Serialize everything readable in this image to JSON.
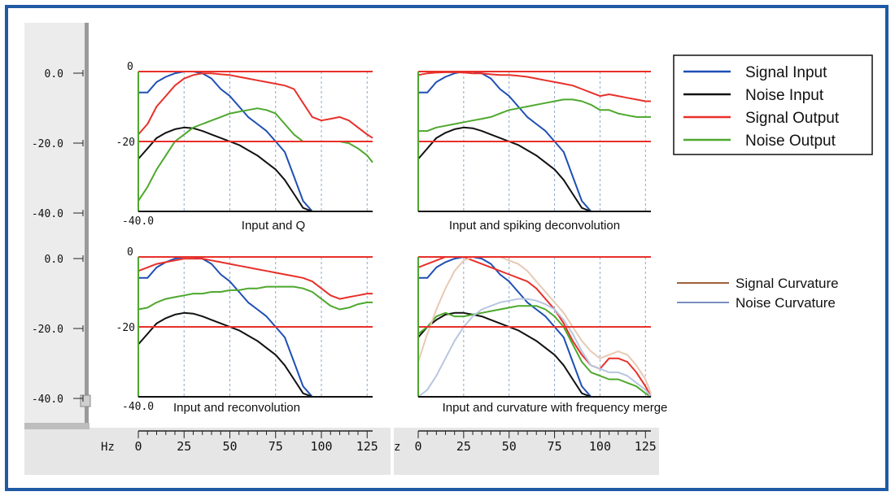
{
  "axis": {
    "y_labels": [
      "0.0",
      "-20.0",
      "-40.0",
      "0.0",
      "-20.0",
      "-40.0"
    ],
    "x_unit": "Hz",
    "x_unit_right": "z",
    "x_ticks": [
      "0",
      "25",
      "50",
      "75",
      "100",
      "125"
    ]
  },
  "legend": {
    "main": [
      {
        "label": "Signal Input",
        "color": "#1f4fb4"
      },
      {
        "label": "Noise Input",
        "color": "#111111"
      },
      {
        "label": "Signal Output",
        "color": "#e8302a"
      },
      {
        "label": "Noise Output",
        "color": "#4ea82e"
      }
    ],
    "curvature": [
      {
        "label": "Signal Curvature",
        "color": "#a0603a"
      },
      {
        "label": "Noise Curvature",
        "color": "#7a8fc0"
      }
    ]
  },
  "chart_data": [
    {
      "type": "line",
      "title": "Input and Q",
      "xlabel": "Hz",
      "ylabel": "",
      "xlim": [
        0,
        128
      ],
      "ylim": [
        -40,
        0
      ],
      "ytick_labels": [
        "0",
        "-20",
        "-40.0"
      ],
      "reference_lines": [
        0,
        -20
      ],
      "series": [
        {
          "name": "Signal Input",
          "color": "#1f4fb4",
          "x": [
            0,
            5,
            10,
            15,
            20,
            25,
            30,
            35,
            40,
            45,
            50,
            55,
            60,
            65,
            70,
            75,
            80,
            85,
            90,
            95,
            100
          ],
          "y": [
            -6,
            -6,
            -3,
            -1.5,
            -0.5,
            0,
            0,
            -0.5,
            -2,
            -5,
            -7,
            -10,
            -13,
            -15,
            -17,
            -20,
            -23,
            -30,
            -37,
            -40,
            -40
          ]
        },
        {
          "name": "Noise Input",
          "color": "#111111",
          "x": [
            0,
            5,
            10,
            15,
            20,
            25,
            30,
            35,
            40,
            45,
            50,
            55,
            60,
            65,
            70,
            75,
            80,
            85,
            90,
            95,
            100,
            128
          ],
          "y": [
            -25,
            -22,
            -19,
            -17.5,
            -16.5,
            -16,
            -16.2,
            -17,
            -18,
            -19,
            -20,
            -21,
            -22.5,
            -24,
            -26,
            -28,
            -31,
            -35,
            -39,
            -40,
            -40,
            -40
          ]
        },
        {
          "name": "Signal Output",
          "color": "#e8302a",
          "x": [
            0,
            5,
            10,
            15,
            20,
            25,
            30,
            35,
            40,
            45,
            50,
            55,
            60,
            65,
            70,
            75,
            80,
            85,
            90,
            95,
            100,
            105,
            110,
            115,
            120,
            125,
            128
          ],
          "y": [
            -18,
            -15,
            -10,
            -7,
            -4,
            -2,
            -1,
            -0.5,
            -0.5,
            -0.8,
            -1,
            -1.5,
            -2,
            -2.5,
            -3,
            -3.5,
            -4,
            -5,
            -9,
            -13,
            -14,
            -13.5,
            -13,
            -14,
            -16,
            -18,
            -19
          ]
        },
        {
          "name": "Noise Output",
          "color": "#4ea82e",
          "x": [
            0,
            5,
            10,
            15,
            20,
            25,
            30,
            35,
            40,
            45,
            50,
            55,
            60,
            65,
            70,
            75,
            80,
            85,
            90,
            95,
            100,
            105,
            110,
            115,
            120,
            125,
            128
          ],
          "y": [
            -37,
            -33,
            -28,
            -24,
            -20,
            -18,
            -16,
            -15,
            -14,
            -13,
            -12,
            -11.5,
            -11,
            -10.5,
            -11,
            -12,
            -15,
            -18,
            -20,
            -20,
            -20,
            -20,
            -20,
            -20.5,
            -22,
            -24,
            -26
          ]
        }
      ]
    },
    {
      "type": "line",
      "title": "Input and spiking deconvolution",
      "xlabel": "Hz",
      "ylabel": "",
      "xlim": [
        0,
        128
      ],
      "ylim": [
        -40,
        0
      ],
      "reference_lines": [
        0,
        -20
      ],
      "series": [
        {
          "name": "Signal Input",
          "color": "#1f4fb4",
          "x": [
            0,
            5,
            10,
            15,
            20,
            25,
            30,
            35,
            40,
            45,
            50,
            55,
            60,
            65,
            70,
            75,
            80,
            85,
            90,
            95,
            100
          ],
          "y": [
            -6,
            -6,
            -3,
            -1.5,
            -0.5,
            0,
            0,
            -0.5,
            -2,
            -5,
            -7,
            -10,
            -13,
            -15,
            -17,
            -20,
            -23,
            -30,
            -37,
            -40,
            -40
          ]
        },
        {
          "name": "Noise Input",
          "color": "#111111",
          "x": [
            0,
            5,
            10,
            15,
            20,
            25,
            30,
            35,
            40,
            45,
            50,
            55,
            60,
            65,
            70,
            75,
            80,
            85,
            90,
            95,
            100,
            128
          ],
          "y": [
            -25,
            -22,
            -19,
            -17.5,
            -16.5,
            -16,
            -16.2,
            -17,
            -18,
            -19,
            -20,
            -21,
            -22.5,
            -24,
            -26,
            -28,
            -31,
            -35,
            -39,
            -40,
            -40,
            -40
          ]
        },
        {
          "name": "Signal Output",
          "color": "#e8302a",
          "x": [
            0,
            5,
            10,
            15,
            20,
            25,
            30,
            35,
            40,
            45,
            50,
            55,
            60,
            65,
            70,
            75,
            80,
            85,
            90,
            95,
            100,
            105,
            110,
            115,
            120,
            125,
            128
          ],
          "y": [
            -1,
            -0.5,
            -0.3,
            -0.2,
            -0.2,
            -0.3,
            -0.5,
            -0.5,
            -0.8,
            -1,
            -1,
            -1.2,
            -1.5,
            -2,
            -2.5,
            -3,
            -3.5,
            -4,
            -5,
            -6,
            -7,
            -6.5,
            -7,
            -7.5,
            -8,
            -8.5,
            -8.5
          ]
        },
        {
          "name": "Noise Output",
          "color": "#4ea82e",
          "x": [
            0,
            5,
            10,
            15,
            20,
            25,
            30,
            35,
            40,
            45,
            50,
            55,
            60,
            65,
            70,
            75,
            80,
            85,
            90,
            95,
            100,
            105,
            110,
            115,
            120,
            125,
            128
          ],
          "y": [
            -17,
            -17,
            -16,
            -15.5,
            -15,
            -14.5,
            -14,
            -13.5,
            -13,
            -12,
            -11,
            -10.5,
            -10,
            -9.5,
            -9,
            -8.5,
            -8,
            -8,
            -8.5,
            -9.5,
            -11,
            -11,
            -12,
            -12.5,
            -13,
            -13,
            -13
          ]
        }
      ]
    },
    {
      "type": "line",
      "title": "Input and reconvolution",
      "xlabel": "Hz",
      "ylabel": "",
      "xlim": [
        0,
        128
      ],
      "ylim": [
        -40,
        0
      ],
      "ytick_labels": [
        "0",
        "-20",
        "-40.0"
      ],
      "reference_lines": [
        0,
        -20
      ],
      "series": [
        {
          "name": "Signal Input",
          "color": "#1f4fb4",
          "x": [
            0,
            5,
            10,
            15,
            20,
            25,
            30,
            35,
            40,
            45,
            50,
            55,
            60,
            65,
            70,
            75,
            80,
            85,
            90,
            95,
            100
          ],
          "y": [
            -6,
            -6,
            -3,
            -1.5,
            -0.5,
            0,
            0,
            -0.5,
            -2,
            -5,
            -7,
            -10,
            -13,
            -15,
            -17,
            -20,
            -23,
            -30,
            -37,
            -40,
            -40
          ]
        },
        {
          "name": "Noise Input",
          "color": "#111111",
          "x": [
            0,
            5,
            10,
            15,
            20,
            25,
            30,
            35,
            40,
            45,
            50,
            55,
            60,
            65,
            70,
            75,
            80,
            85,
            90,
            95,
            100,
            128
          ],
          "y": [
            -25,
            -22,
            -19,
            -17.5,
            -16.5,
            -16,
            -16.2,
            -17,
            -18,
            -19,
            -20,
            -21,
            -22.5,
            -24,
            -26,
            -28,
            -31,
            -35,
            -39,
            -40,
            -40,
            -40
          ]
        },
        {
          "name": "Signal Output",
          "color": "#e8302a",
          "x": [
            0,
            5,
            10,
            15,
            20,
            25,
            30,
            35,
            40,
            45,
            50,
            55,
            60,
            65,
            70,
            75,
            80,
            85,
            90,
            95,
            100,
            105,
            110,
            115,
            120,
            125,
            128
          ],
          "y": [
            -4,
            -3,
            -2,
            -1.5,
            -1,
            -0.5,
            -0.5,
            -0.5,
            -1,
            -1.5,
            -2,
            -2.5,
            -3,
            -3.5,
            -4,
            -4.5,
            -5,
            -5.5,
            -6,
            -7,
            -9,
            -11,
            -12,
            -11.5,
            -11,
            -10.5,
            -10.5
          ]
        },
        {
          "name": "Noise Output",
          "color": "#4ea82e",
          "x": [
            0,
            5,
            10,
            15,
            20,
            25,
            30,
            35,
            40,
            45,
            50,
            55,
            60,
            65,
            70,
            75,
            80,
            85,
            90,
            95,
            100,
            105,
            110,
            115,
            120,
            125,
            128
          ],
          "y": [
            -15,
            -14.5,
            -13,
            -12,
            -11.5,
            -11,
            -10.5,
            -10.5,
            -10,
            -10,
            -9.5,
            -9.5,
            -9,
            -9,
            -8.5,
            -8.5,
            -8.5,
            -8.5,
            -9,
            -10,
            -12,
            -14,
            -15,
            -14.5,
            -13.5,
            -13,
            -13
          ]
        }
      ]
    },
    {
      "type": "line",
      "title": "Input and curvature with frequency merge",
      "xlabel": "Hz",
      "ylabel": "",
      "xlim": [
        0,
        128
      ],
      "ylim": [
        -40,
        0
      ],
      "reference_lines": [
        0,
        -20
      ],
      "series": [
        {
          "name": "Signal Input",
          "color": "#1f4fb4",
          "x": [
            0,
            5,
            10,
            15,
            20,
            25,
            30,
            35,
            40,
            45,
            50,
            55,
            60,
            65,
            70,
            75,
            80,
            85,
            90,
            95,
            100
          ],
          "y": [
            -6,
            -6,
            -3,
            -1.5,
            -0.5,
            0,
            0,
            -0.5,
            -2,
            -5,
            -7,
            -10,
            -13,
            -15,
            -17,
            -20,
            -23,
            -30,
            -37,
            -40,
            -40
          ]
        },
        {
          "name": "Noise Input",
          "color": "#111111",
          "x": [
            0,
            5,
            10,
            15,
            20,
            25,
            30,
            35,
            40,
            45,
            50,
            55,
            60,
            65,
            70,
            75,
            80,
            85,
            90,
            95
          ],
          "y": [
            -23,
            -20,
            -18,
            -16.5,
            -16,
            -16,
            -16.5,
            -17,
            -18,
            -19,
            -20,
            -21,
            -22.5,
            -24,
            -26,
            -28,
            -31,
            -35,
            -39,
            -40
          ]
        },
        {
          "name": "Signal Output",
          "color": "#e8302a",
          "x": [
            0,
            5,
            10,
            15,
            20,
            25,
            30,
            35,
            40,
            45,
            50,
            55,
            60,
            65,
            70,
            75,
            80,
            85,
            90,
            95,
            100,
            105,
            110,
            115,
            120,
            125,
            128
          ],
          "y": [
            -3,
            -2,
            -1,
            0,
            0,
            0,
            -1,
            -2,
            -3,
            -4,
            -5,
            -6,
            -7,
            -9,
            -12,
            -15,
            -19,
            -24,
            -28,
            -31,
            -32,
            -29,
            -29,
            -30,
            -33,
            -37,
            -40
          ]
        },
        {
          "name": "Noise Output",
          "color": "#4ea82e",
          "x": [
            0,
            5,
            10,
            15,
            20,
            25,
            30,
            35,
            40,
            45,
            50,
            55,
            60,
            65,
            70,
            75,
            80,
            85,
            90,
            95,
            100,
            105,
            110,
            115,
            120,
            125,
            128
          ],
          "y": [
            -22,
            -20,
            -17,
            -16,
            -17,
            -17,
            -16.5,
            -16,
            -15.5,
            -15,
            -14.5,
            -14,
            -14,
            -14,
            -15,
            -17,
            -20,
            -25,
            -30,
            -33,
            -34,
            -35,
            -35,
            -36,
            -37,
            -39,
            -40
          ]
        },
        {
          "name": "Signal Curvature",
          "color": "#e8c9b4",
          "x": [
            0,
            5,
            10,
            15,
            20,
            25,
            30,
            35,
            40,
            45,
            50,
            55,
            60,
            65,
            70,
            75,
            80,
            85,
            90,
            95,
            100,
            105,
            110,
            115,
            120,
            125,
            128
          ],
          "y": [
            -30,
            -22,
            -15,
            -9,
            -4,
            -1,
            0,
            0,
            0,
            0,
            -1,
            -2,
            -4,
            -7,
            -10,
            -13,
            -16,
            -20,
            -24,
            -27,
            -29,
            -28,
            -27,
            -28,
            -31,
            -35,
            -39
          ]
        },
        {
          "name": "Noise Curvature",
          "color": "#b8c6df",
          "x": [
            0,
            5,
            10,
            15,
            20,
            25,
            30,
            35,
            40,
            45,
            50,
            55,
            60,
            65,
            70,
            75,
            80,
            85,
            90,
            95,
            100,
            105,
            110,
            115,
            120,
            125,
            128
          ],
          "y": [
            -40,
            -38,
            -34,
            -29,
            -24,
            -20,
            -17,
            -15,
            -14,
            -13,
            -12.5,
            -12,
            -12,
            -12.5,
            -13.5,
            -15,
            -18,
            -22,
            -27,
            -31,
            -32,
            -33,
            -33,
            -34,
            -36,
            -38,
            -40
          ]
        }
      ]
    }
  ]
}
